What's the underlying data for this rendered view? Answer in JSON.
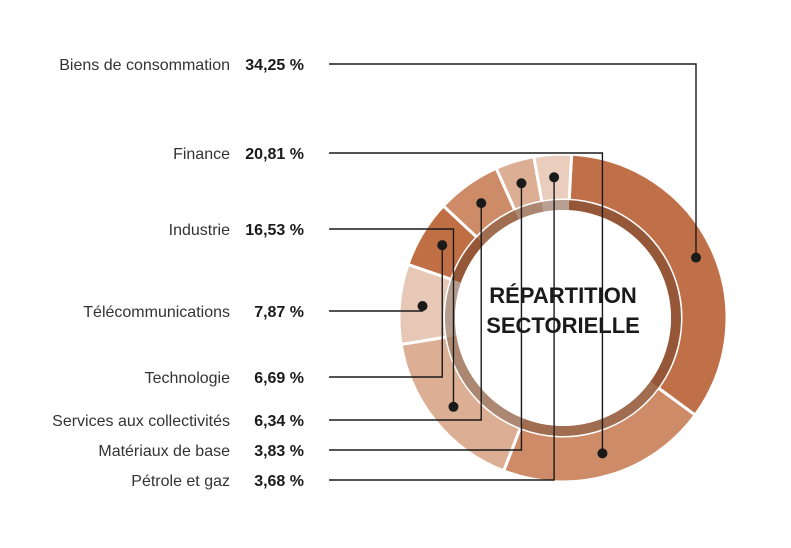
{
  "chart_data": {
    "type": "pie",
    "center_title": [
      "RÉPARTITION",
      "SECTORIELLE"
    ],
    "unit": "%",
    "slices": [
      {
        "label": "Biens de consommation",
        "value": 34.25,
        "value_text": "34,25 %",
        "color": "#c07048"
      },
      {
        "label": "Finance",
        "value": 20.81,
        "value_text": "20,81 %",
        "color": "#cd8c67"
      },
      {
        "label": "Industrie",
        "value": 16.53,
        "value_text": "16,53 %",
        "color": "#dcae93"
      },
      {
        "label": "Télécommunications",
        "value": 7.87,
        "value_text": "7,87 %",
        "color": "#e7c8b6"
      },
      {
        "label": "Technologie",
        "value": 6.69,
        "value_text": "6,69 %",
        "color": "#c06f45"
      },
      {
        "label": "Services aux collectivités",
        "value": 6.34,
        "value_text": "6,34 %",
        "color": "#cd8c67"
      },
      {
        "label": "Matériaux de base",
        "value": 3.83,
        "value_text": "3,83 %",
        "color": "#dcae93"
      },
      {
        "label": "Pétrole et gaz",
        "value": 3.68,
        "value_text": "3,68 %",
        "color": "#eacdbd"
      }
    ]
  }
}
